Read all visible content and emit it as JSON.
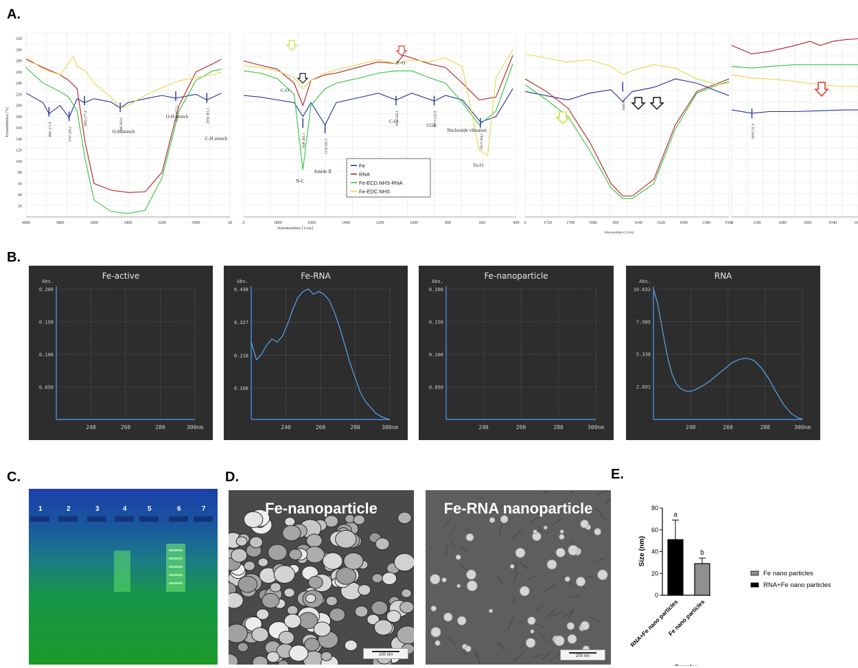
{
  "panels": {
    "a": "A.",
    "b": "B.",
    "c": "C.",
    "d": "D.",
    "e": "E."
  },
  "ftir": {
    "ylabel": "Transmittance [%]",
    "xlabel": "Wavenumbers [1/cm]",
    "yticks": [
      20,
      40,
      60,
      80,
      100,
      120,
      140,
      160,
      180,
      200,
      220,
      240,
      260,
      280,
      300,
      320
    ],
    "p1_xticks": [
      "4000",
      "3800",
      "3600",
      "3400",
      "3200",
      "3000",
      "28"
    ],
    "p2_xticks": [
      "0",
      "1800",
      "1600",
      "1400",
      "1200",
      "1000",
      "800",
      "600",
      "400"
    ],
    "p3_xticks": [
      "0",
      "1720",
      "1700",
      "1680",
      "660",
      "1640",
      "1620",
      "1600",
      "1580",
      "1560"
    ],
    "p4_xticks": [
      "1",
      "1100",
      "1080",
      "1060",
      "1040",
      "1020"
    ],
    "p1_peaks": [
      "3865 271.8",
      "3747 256.2",
      "3656 277.4",
      "3446 263.6",
      "3119 307.3",
      "2936 301.3"
    ],
    "p1_annotations": [
      "O-H stretch",
      "O-H stretch",
      "C-H stretch"
    ],
    "p2_peaks": [
      "1648 263.3",
      "1516 243.3",
      "1094 256.3",
      "867.5 231.8",
      "592.9 264.1"
    ],
    "p2_annotations": [
      "C-O",
      "P=O",
      "N-C",
      "Amide II",
      "C-O",
      "CO3",
      "Nucleotide vibration",
      "Fe-O"
    ],
    "p3_peaks": [
      "1649 81.1"
    ],
    "p4_peaks": [
      "1094 131.4"
    ],
    "colors": {
      "Fe": "#1e2f9c",
      "RNA": "#b01e1e",
      "Fe-ECD.NHS-RNA": "#2fc43a",
      "Fe-EDC.NHS": "#e8d64a",
      "arrow_red": "#d9312b",
      "arrow_green": "#c8e03c"
    }
  },
  "chart_data": [
    {
      "type": "line",
      "title": "",
      "xlabel": "Wavenumbers [1/cm]",
      "ylabel": "Transmittance [%]",
      "xlim": [
        4000,
        2800
      ],
      "ylim": [
        0,
        330
      ],
      "series": [
        {
          "name": "Fe",
          "x": [
            4000,
            3900,
            3865,
            3800,
            3747,
            3700,
            3656,
            3600,
            3500,
            3446,
            3400,
            3300,
            3200,
            3119,
            3000,
            2936,
            2850
          ],
          "y": [
            222,
            205,
            185,
            200,
            178,
            212,
            205,
            212,
            206,
            195,
            205,
            212,
            218,
            213,
            220,
            210,
            222
          ]
        },
        {
          "name": "RNA",
          "x": [
            4000,
            3900,
            3800,
            3750,
            3700,
            3650,
            3600,
            3500,
            3400,
            3300,
            3200,
            3150,
            3100,
            3000,
            2900,
            2850
          ],
          "y": [
            283,
            268,
            255,
            245,
            230,
            130,
            60,
            48,
            44,
            45,
            80,
            140,
            200,
            260,
            275,
            283
          ]
        },
        {
          "name": "Fe-ECD.NHS-RNA",
          "x": [
            4000,
            3900,
            3800,
            3750,
            3700,
            3650,
            3600,
            3500,
            3400,
            3300,
            3200,
            3150,
            3100,
            3000,
            2900,
            2850
          ],
          "y": [
            268,
            240,
            225,
            215,
            190,
            100,
            30,
            10,
            6,
            12,
            70,
            130,
            190,
            245,
            262,
            265
          ]
        },
        {
          "name": "Fe-EDC.NHS",
          "x": [
            4000,
            3900,
            3800,
            3720,
            3700,
            3650,
            3600,
            3500,
            3446,
            3400,
            3300,
            3200,
            3100,
            3000,
            2900,
            2850
          ],
          "y": [
            287,
            265,
            255,
            288,
            270,
            262,
            240,
            215,
            195,
            200,
            218,
            232,
            244,
            250,
            255,
            260
          ]
        }
      ]
    },
    {
      "type": "line",
      "xlabel": "Wavenumbers [1/cm]",
      "ylabel": "Transmittance [%]",
      "xlim": [
        2000,
        380
      ],
      "ylim": [
        0,
        330
      ],
      "legend": "bottom-center",
      "series": [
        {
          "name": "Fe",
          "x": [
            2000,
            1900,
            1800,
            1700,
            1648,
            1600,
            1516,
            1450,
            1300,
            1200,
            1094,
            1000,
            867,
            800,
            700,
            592,
            500,
            400
          ],
          "y": [
            218,
            215,
            210,
            205,
            180,
            205,
            165,
            205,
            215,
            222,
            210,
            222,
            208,
            218,
            210,
            170,
            180,
            230
          ]
        },
        {
          "name": "RNA",
          "x": [
            2000,
            1900,
            1800,
            1700,
            1648,
            1600,
            1516,
            1450,
            1300,
            1200,
            1094,
            1050,
            1000,
            900,
            800,
            700,
            600,
            500,
            400
          ],
          "y": [
            280,
            272,
            265,
            240,
            200,
            245,
            255,
            258,
            270,
            278,
            275,
            290,
            285,
            275,
            268,
            240,
            210,
            215,
            290
          ]
        },
        {
          "name": "Fe-ECD.NHS-RNA",
          "x": [
            2000,
            1900,
            1800,
            1700,
            1648,
            1600,
            1516,
            1450,
            1300,
            1200,
            1094,
            1000,
            900,
            800,
            700,
            600,
            500,
            400
          ],
          "y": [
            262,
            258,
            248,
            220,
            85,
            200,
            230,
            240,
            250,
            258,
            262,
            262,
            250,
            240,
            205,
            165,
            190,
            275
          ]
        },
        {
          "name": "Fe-EDC.NHS",
          "x": [
            2000,
            1900,
            1800,
            1700,
            1648,
            1600,
            1516,
            1450,
            1300,
            1200,
            1094,
            1000,
            900,
            800,
            700,
            600,
            550,
            500,
            400
          ],
          "y": [
            272,
            268,
            262,
            250,
            230,
            245,
            258,
            264,
            275,
            282,
            275,
            282,
            278,
            285,
            270,
            120,
            110,
            250,
            300
          ]
        }
      ]
    },
    {
      "type": "line",
      "xlabel": "Wavenumbers [1/cm]",
      "xlim": [
        1740,
        1550
      ],
      "ylim": [
        0,
        220
      ],
      "series": [
        {
          "name": "Fe",
          "x": [
            1740,
            1720,
            1700,
            1680,
            1660,
            1649,
            1640,
            1620,
            1600,
            1580,
            1560,
            1550
          ],
          "y": [
            150,
            145,
            140,
            148,
            152,
            138,
            150,
            155,
            165,
            160,
            150,
            145
          ]
        },
        {
          "name": "RNA",
          "x": [
            1740,
            1720,
            1700,
            1680,
            1660,
            1649,
            1640,
            1620,
            1600,
            1580,
            1560,
            1550
          ],
          "y": [
            165,
            150,
            130,
            90,
            40,
            25,
            25,
            45,
            110,
            150,
            160,
            165
          ]
        },
        {
          "name": "Fe-ECD.NHS-RNA",
          "x": [
            1740,
            1720,
            1700,
            1680,
            1660,
            1649,
            1640,
            1620,
            1600,
            1580,
            1560,
            1550
          ],
          "y": [
            158,
            140,
            120,
            80,
            35,
            22,
            22,
            40,
            105,
            148,
            158,
            162
          ]
        },
        {
          "name": "Fe-EDC.NHS",
          "x": [
            1740,
            1720,
            1700,
            1680,
            1660,
            1649,
            1640,
            1620,
            1600,
            1580,
            1560,
            1550
          ],
          "y": [
            195,
            190,
            185,
            188,
            180,
            170,
            175,
            182,
            178,
            165,
            158,
            160
          ]
        }
      ]
    },
    {
      "type": "line",
      "xlabel": "",
      "xlim": [
        1110,
        1010
      ],
      "ylim": [
        0,
        220
      ],
      "series": [
        {
          "name": "Fe",
          "x": [
            1110,
            1094,
            1080,
            1060,
            1040,
            1020,
            1010
          ],
          "y": [
            128,
            124,
            126,
            126,
            127,
            128,
            128
          ]
        },
        {
          "name": "RNA",
          "x": [
            1110,
            1094,
            1080,
            1060,
            1048,
            1040,
            1030,
            1020,
            1010
          ],
          "y": [
            205,
            195,
            198,
            205,
            210,
            205,
            210,
            212,
            213
          ]
        },
        {
          "name": "Fe-ECD.NHS-RNA",
          "x": [
            1110,
            1094,
            1080,
            1060,
            1040,
            1020,
            1010
          ],
          "y": [
            180,
            178,
            180,
            182,
            182,
            182,
            182
          ]
        },
        {
          "name": "Fe-EDC.NHS",
          "x": [
            1110,
            1094,
            1080,
            1060,
            1040,
            1020,
            1010
          ],
          "y": [
            170,
            166,
            165,
            162,
            158,
            156,
            156
          ]
        }
      ]
    },
    {
      "type": "line",
      "title": "Fe-active",
      "ylabel": "Abs.",
      "xlabel": "300nm",
      "xlim": [
        220,
        300
      ],
      "ylim": [
        0,
        0.2
      ],
      "yticks": [
        "0.200",
        "0.150",
        "0.100",
        "0.050"
      ],
      "xticks": [
        "240",
        "260",
        "280",
        "300nm"
      ],
      "series": []
    },
    {
      "type": "line",
      "title": "Fe-RNA",
      "ylabel": "Abs.",
      "xlabel": "300nm",
      "xlim": [
        220,
        300
      ],
      "ylim": [
        0,
        0.438
      ],
      "yticks": [
        "0.438",
        "0.327",
        "0.216",
        "0.106"
      ],
      "xticks": [
        "240",
        "260",
        "280",
        "300nm"
      ],
      "series": [
        {
          "name": "Fe-RNA",
          "x": [
            220,
            223,
            226,
            229,
            232,
            235,
            238,
            241,
            244,
            247,
            250,
            253,
            256,
            259,
            262,
            265,
            268,
            271,
            274,
            277,
            280,
            283,
            286,
            289,
            292,
            295,
            298,
            300
          ],
          "y": [
            0.26,
            0.2,
            0.22,
            0.25,
            0.27,
            0.26,
            0.28,
            0.32,
            0.37,
            0.41,
            0.43,
            0.438,
            0.42,
            0.43,
            0.42,
            0.4,
            0.36,
            0.31,
            0.25,
            0.19,
            0.14,
            0.09,
            0.06,
            0.04,
            0.02,
            0.01,
            0.003,
            0.0
          ]
        }
      ]
    },
    {
      "type": "line",
      "title": "Fe-nanoparticle",
      "ylabel": "Abs.",
      "xlabel": "300nm",
      "xlim": [
        220,
        300
      ],
      "ylim": [
        0,
        0.2
      ],
      "yticks": [
        "0.200",
        "0.150",
        "0.100",
        "0.050"
      ],
      "xticks": [
        "240",
        "260",
        "280",
        "300nm"
      ],
      "series": []
    },
    {
      "type": "line",
      "title": "RNA",
      "ylabel": "Abs.",
      "xlabel": "300nm",
      "xlim": [
        220,
        300
      ],
      "ylim": [
        0,
        10.632
      ],
      "yticks": [
        "10.632",
        "7.985",
        "5.338",
        "2.691"
      ],
      "xticks": [
        "240",
        "260",
        "280",
        "300nm"
      ],
      "series": [
        {
          "name": "RNA",
          "x": [
            220,
            222,
            224,
            226,
            228,
            230,
            232,
            234,
            236,
            238,
            240,
            242,
            246,
            250,
            254,
            258,
            262,
            266,
            270,
            274,
            278,
            282,
            286,
            290,
            294,
            298,
            300
          ],
          "y": [
            10.6,
            9.6,
            8.0,
            6.3,
            4.8,
            3.7,
            3.0,
            2.6,
            2.4,
            2.3,
            2.3,
            2.4,
            2.7,
            3.1,
            3.6,
            4.1,
            4.6,
            4.9,
            5.0,
            4.8,
            4.2,
            3.3,
            2.2,
            1.2,
            0.5,
            0.1,
            0.05
          ]
        }
      ]
    },
    {
      "type": "bar",
      "title": "",
      "categories": [
        "RNA+Fe nano particles",
        "Fe nano particles"
      ],
      "values": [
        51,
        29
      ],
      "errors": [
        18,
        5
      ],
      "letters": [
        "a",
        "b"
      ],
      "xlabel": "Samples",
      "ylabel": "Size (nm)",
      "ylim": [
        0,
        80
      ],
      "yticks": [
        "0",
        "20",
        "40",
        "60",
        "80"
      ],
      "legend": [
        "Fe nano particles",
        "RNA+Fe nano particles"
      ],
      "colors": [
        "#000000",
        "#909090"
      ]
    }
  ],
  "gel": {
    "lanes": [
      "1",
      "2",
      "3",
      "4",
      "5",
      "6",
      "7"
    ]
  },
  "sem": {
    "left_title": "Fe-nanoparticle",
    "right_title": "Fe-RNA nanoparticle",
    "left_scale": "100 nm",
    "right_scale": "200 nm"
  }
}
